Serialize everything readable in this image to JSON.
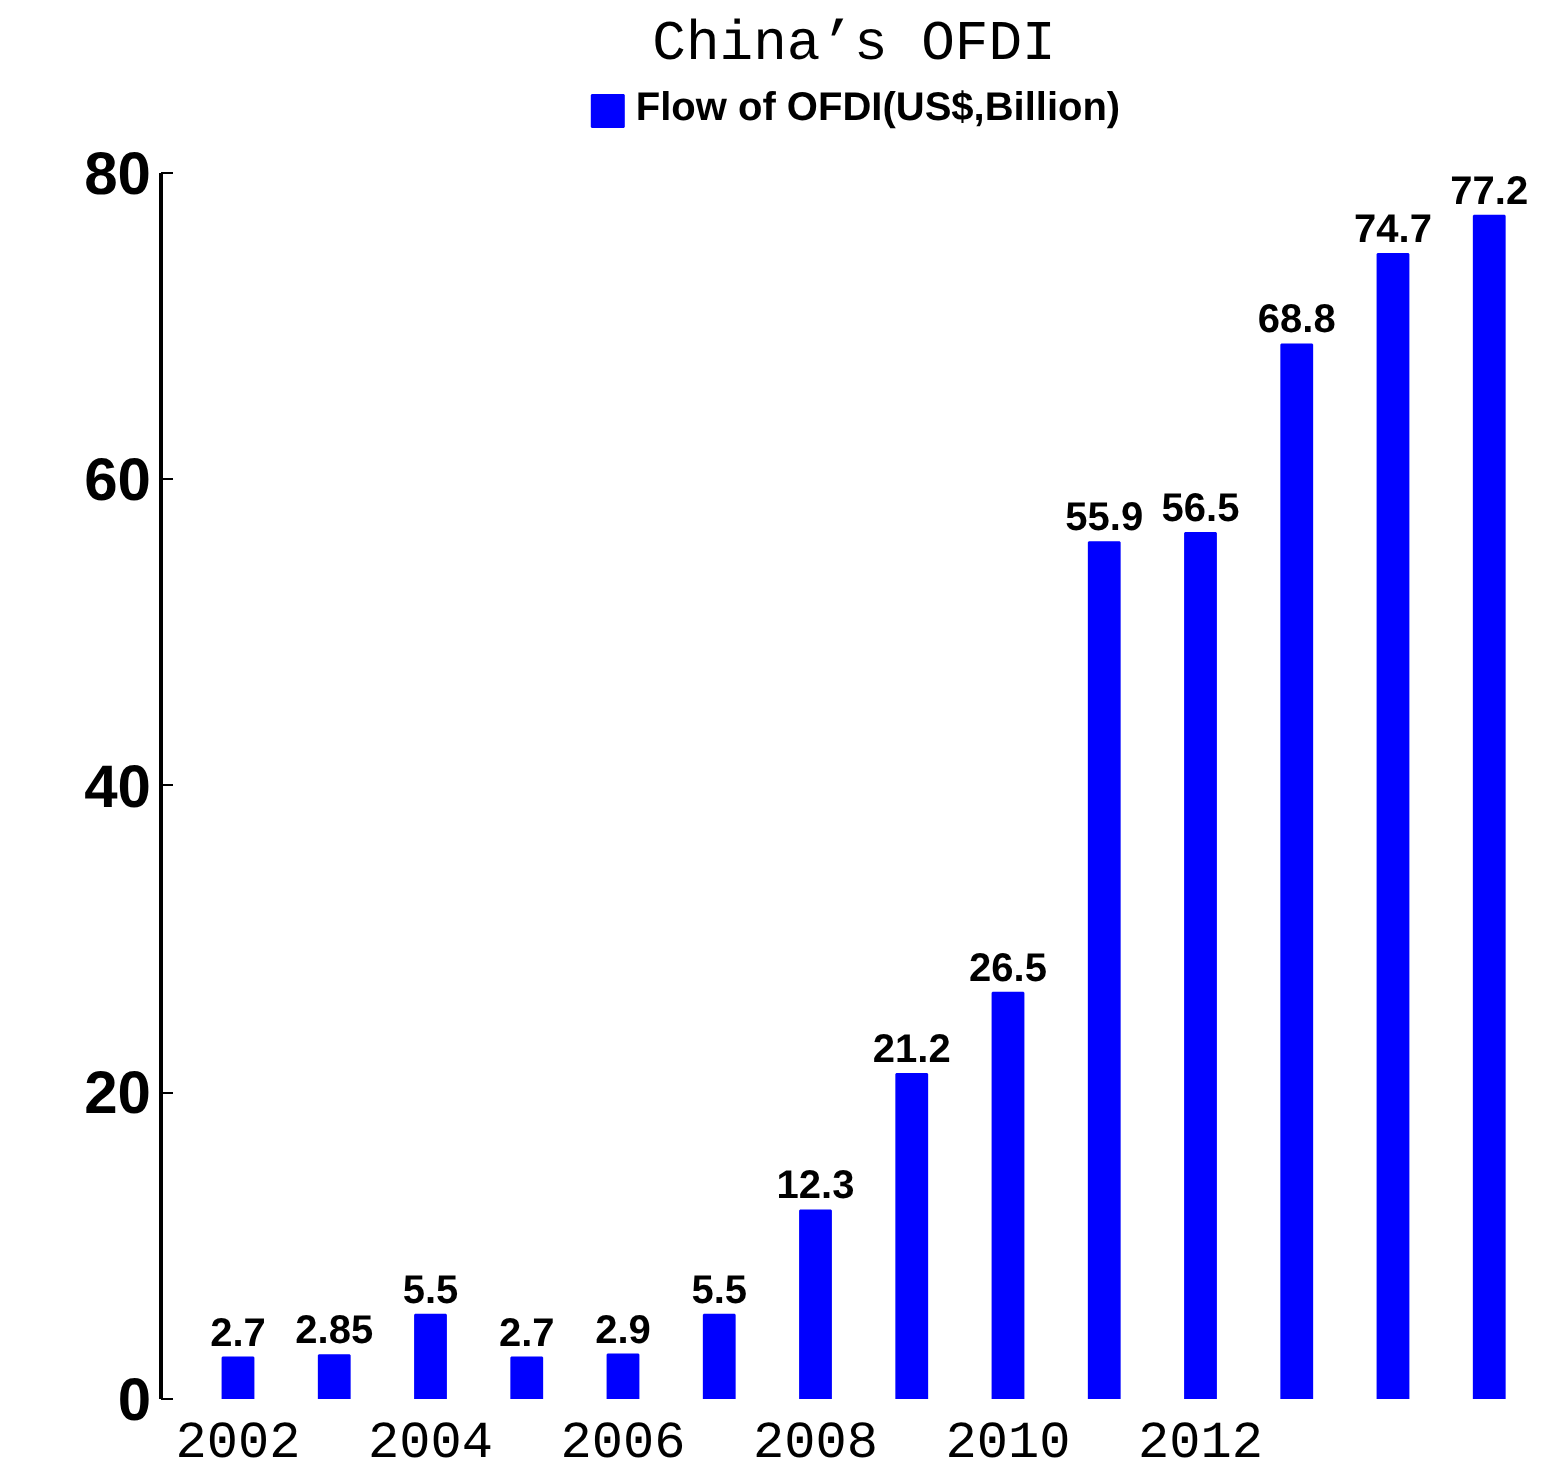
{
  "chart_data": {
    "type": "bar",
    "title": "China’s OFDI",
    "categories": [
      "2002",
      null,
      "2004",
      null,
      "2006",
      null,
      "2008",
      null,
      "2010",
      null,
      "2012",
      null,
      null,
      null
    ],
    "series": [
      {
        "name": "Flow of OFDI(US$,Billion)",
        "color": "#0000ff",
        "values": [
          2.7,
          2.85,
          5.5,
          2.7,
          2.9,
          5.5,
          12.3,
          21.2,
          26.5,
          55.9,
          56.5,
          68.8,
          74.7,
          77.2
        ]
      }
    ],
    "ylim": [
      0,
      80
    ],
    "yticks": [
      0,
      20,
      40,
      60,
      80
    ],
    "grid": false,
    "legend": "top",
    "data_labels": true
  }
}
